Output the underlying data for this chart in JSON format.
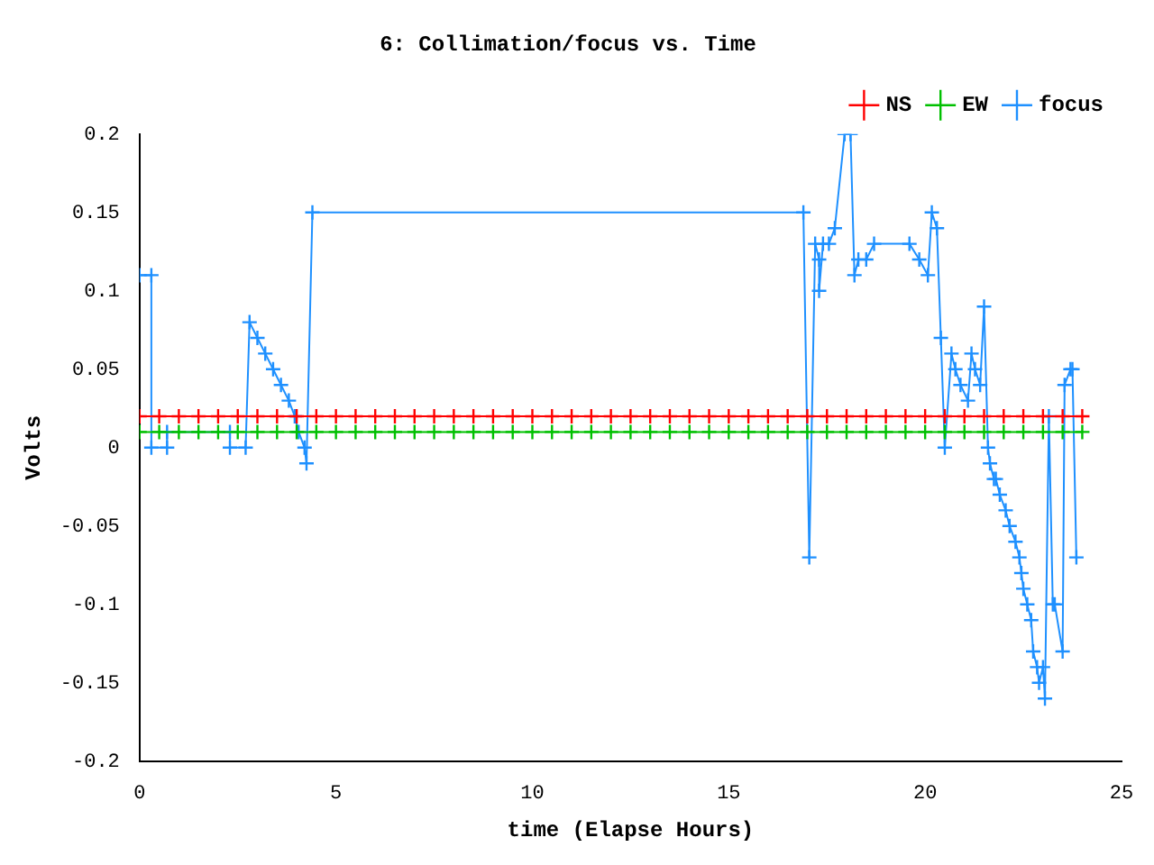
{
  "chart_data": {
    "type": "line",
    "title": "6: Collimation/focus vs. Time",
    "xlabel": "time (Elapse Hours)",
    "ylabel": "Volts",
    "x": [
      0,
      0.5,
      1,
      1.5,
      2,
      2.5,
      3,
      3.5,
      4,
      4.5,
      5,
      5.5,
      6,
      6.5,
      7,
      7.5,
      8,
      8.5,
      9,
      9.5,
      10,
      10.5,
      11,
      11.5,
      12,
      12.5,
      13,
      13.5,
      14,
      14.5,
      15,
      15.5,
      16,
      16.5,
      17,
      17.5,
      18,
      18.5,
      19,
      19.5,
      20,
      20.5,
      21,
      21.5,
      22,
      22.5,
      23,
      23.5,
      24
    ],
    "series": [
      {
        "name": "NS",
        "color": "#ff0000",
        "marker": "cross",
        "values": [
          0.02,
          0.02,
          0.02,
          0.02,
          0.02,
          0.02,
          0.02,
          0.02,
          0.02,
          0.02,
          0.02,
          0.02,
          0.02,
          0.02,
          0.02,
          0.02,
          0.02,
          0.02,
          0.02,
          0.02,
          0.02,
          0.02,
          0.02,
          0.02,
          0.02,
          0.02,
          0.02,
          0.02,
          0.02,
          0.02,
          0.02,
          0.02,
          0.02,
          0.02,
          0.02,
          0.02,
          0.02,
          0.02,
          0.02,
          0.02,
          0.02,
          0.02,
          0.02,
          0.02,
          0.02,
          0.02,
          0.02,
          0.02,
          0.02
        ]
      },
      {
        "name": "EW",
        "color": "#00c000",
        "marker": "cross",
        "values": [
          0.01,
          0.01,
          0.01,
          0.01,
          0.01,
          0.01,
          0.01,
          0.01,
          0.01,
          0.01,
          0.01,
          0.01,
          0.01,
          0.01,
          0.01,
          0.01,
          0.01,
          0.01,
          0.01,
          0.01,
          0.01,
          0.01,
          0.01,
          0.01,
          0.01,
          0.01,
          0.01,
          0.01,
          0.01,
          0.01,
          0.01,
          0.01,
          0.01,
          0.01,
          0.01,
          0.01,
          0.01,
          0.01,
          0.01,
          0.01,
          0.01,
          0.01,
          0.01,
          0.01,
          0.01,
          0.01,
          0.01,
          0.01,
          0.01
        ]
      },
      {
        "name": "focus",
        "color": "#1e90ff",
        "marker": "cross",
        "x": [
          0,
          0.3,
          0.3,
          0.7,
          0.7,
          2.3,
          2.3,
          2.7,
          2.8,
          3.0,
          3.2,
          3.4,
          3.6,
          3.8,
          3.95,
          4.05,
          4.2,
          4.25,
          4.4,
          16.9,
          17.05,
          17.2,
          17.3,
          17.3,
          17.4,
          17.55,
          17.7,
          17.95,
          18.1,
          18.2,
          18.3,
          18.5,
          18.7,
          19.6,
          19.85,
          20.07,
          20.17,
          20.3,
          20.4,
          20.5,
          20.67,
          20.77,
          20.9,
          21.09,
          21.18,
          21.27,
          21.4,
          21.5,
          21.6,
          21.65,
          21.75,
          21.8,
          21.9,
          22.05,
          22.15,
          22.3,
          22.4,
          22.45,
          22.5,
          22.6,
          22.7,
          22.75,
          22.85,
          22.9,
          23.0,
          23.05,
          23.15,
          23.25,
          23.3,
          23.5,
          23.55,
          23.7,
          23.75,
          23.85
        ],
        "values": [
          0.11,
          0.11,
          0,
          0,
          0.01,
          0.01,
          0,
          0,
          0.08,
          0.07,
          0.06,
          0.05,
          0.04,
          0.03,
          0.02,
          0.01,
          0,
          -0.01,
          0.15,
          0.15,
          -0.07,
          0.13,
          0.12,
          0.1,
          0.13,
          0.13,
          0.14,
          0.2,
          0.2,
          0.11,
          0.12,
          0.12,
          0.13,
          0.13,
          0.12,
          0.11,
          0.15,
          0.14,
          0.07,
          0,
          0.06,
          0.05,
          0.04,
          0.03,
          0.06,
          0.05,
          0.04,
          0.09,
          0,
          -0.01,
          -0.02,
          -0.02,
          -0.03,
          -0.04,
          -0.05,
          -0.06,
          -0.07,
          -0.08,
          -0.09,
          -0.1,
          -0.11,
          -0.13,
          -0.14,
          -0.15,
          -0.14,
          -0.16,
          0.02,
          -0.1,
          -0.1,
          -0.13,
          0.04,
          0.05,
          0.05,
          -0.07
        ]
      }
    ],
    "xlim": [
      0,
      25
    ],
    "xticks": [
      0,
      5,
      10,
      15,
      20,
      25
    ],
    "ylim": [
      -0.2,
      0.2
    ],
    "yticks": [
      -0.2,
      -0.15,
      -0.1,
      -0.05,
      0,
      0.05,
      0.1,
      0.15,
      0.2
    ],
    "grid": false,
    "legend": "top right"
  }
}
